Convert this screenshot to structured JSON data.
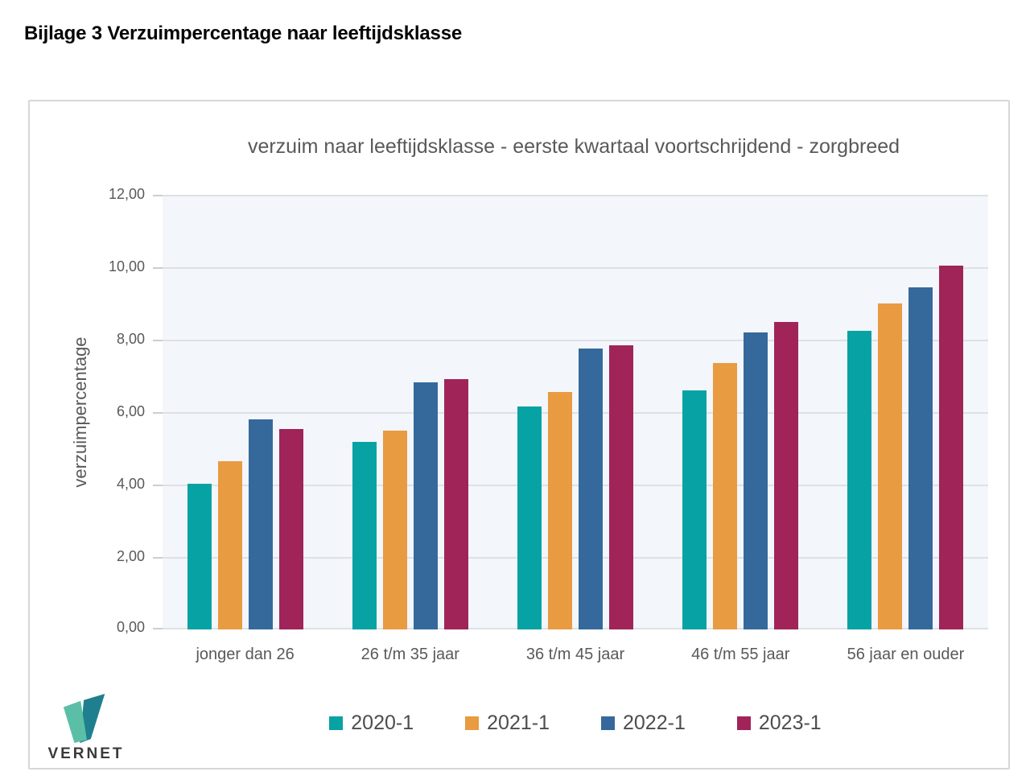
{
  "page": {
    "title": "Bijlage 3 Verzuimpercentage naar leeftijdsklasse"
  },
  "logo": {
    "text": "VERNET",
    "mark_color_light": "#5ABFA6",
    "mark_color_dark": "#1F7F8E"
  },
  "colors": {
    "plot_background": "#f3f6fa",
    "gridline": "#dde1e6",
    "card_border": "#d7d7d7",
    "axis_text": "#595959",
    "legend_text": "#4d4d4d"
  },
  "chart_data": {
    "type": "bar",
    "title": "verzuim naar leeftijdsklasse - eerste kwartaal voortschrijdend - zorgbreed",
    "xlabel": "",
    "ylabel": "verzuimpercentage",
    "ylim": [
      0,
      12
    ],
    "ytick_labels": [
      "0,00",
      "2,00",
      "4,00",
      "6,00",
      "8,00",
      "10,00",
      "12,00"
    ],
    "grid": true,
    "legend_position": "bottom",
    "categories": [
      "jonger dan 26",
      "26 t/m 35 jaar",
      "36 t/m 45 jaar",
      "46 t/m 55 jaar",
      "56 jaar en ouder"
    ],
    "series": [
      {
        "name": "2020-1",
        "color": "#07A2A3",
        "values": [
          4.03,
          5.17,
          6.15,
          6.6,
          8.25
        ]
      },
      {
        "name": "2021-1",
        "color": "#E89B40",
        "values": [
          4.65,
          5.48,
          6.55,
          7.35,
          9.0
        ]
      },
      {
        "name": "2022-1",
        "color": "#35699B",
        "values": [
          5.8,
          6.82,
          7.75,
          8.2,
          9.45
        ]
      },
      {
        "name": "2023-1",
        "color": "#A02458",
        "values": [
          5.53,
          6.92,
          7.85,
          8.5,
          10.05
        ]
      }
    ]
  }
}
